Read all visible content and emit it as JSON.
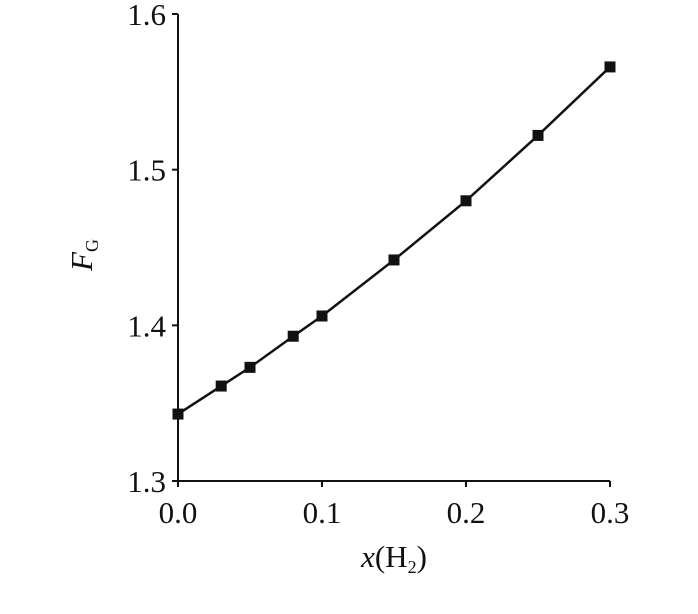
{
  "chart_data": {
    "type": "line",
    "x_label": [
      "x",
      "(H",
      "2",
      ")"
    ],
    "y_label": [
      "F",
      "G"
    ],
    "series": [
      {
        "color": "#111111",
        "x": [
          0,
          0.03,
          0.05,
          0.08,
          0.1,
          0.15,
          0.2,
          0.25,
          0.3
        ],
        "values": [
          1.343,
          1.361,
          1.373,
          1.393,
          1.406,
          1.442,
          1.48,
          1.522,
          1.566
        ]
      }
    ],
    "xlim": [
      0,
      0.3
    ],
    "ylim": [
      1.3,
      1.6
    ],
    "xticks": [
      {
        "value": 0,
        "label": "0.0"
      },
      0.1,
      0.2,
      0.3
    ],
    "yticks": [
      1.3,
      1.4,
      1.5,
      1.6
    ],
    "marker": "square",
    "grid": false
  }
}
